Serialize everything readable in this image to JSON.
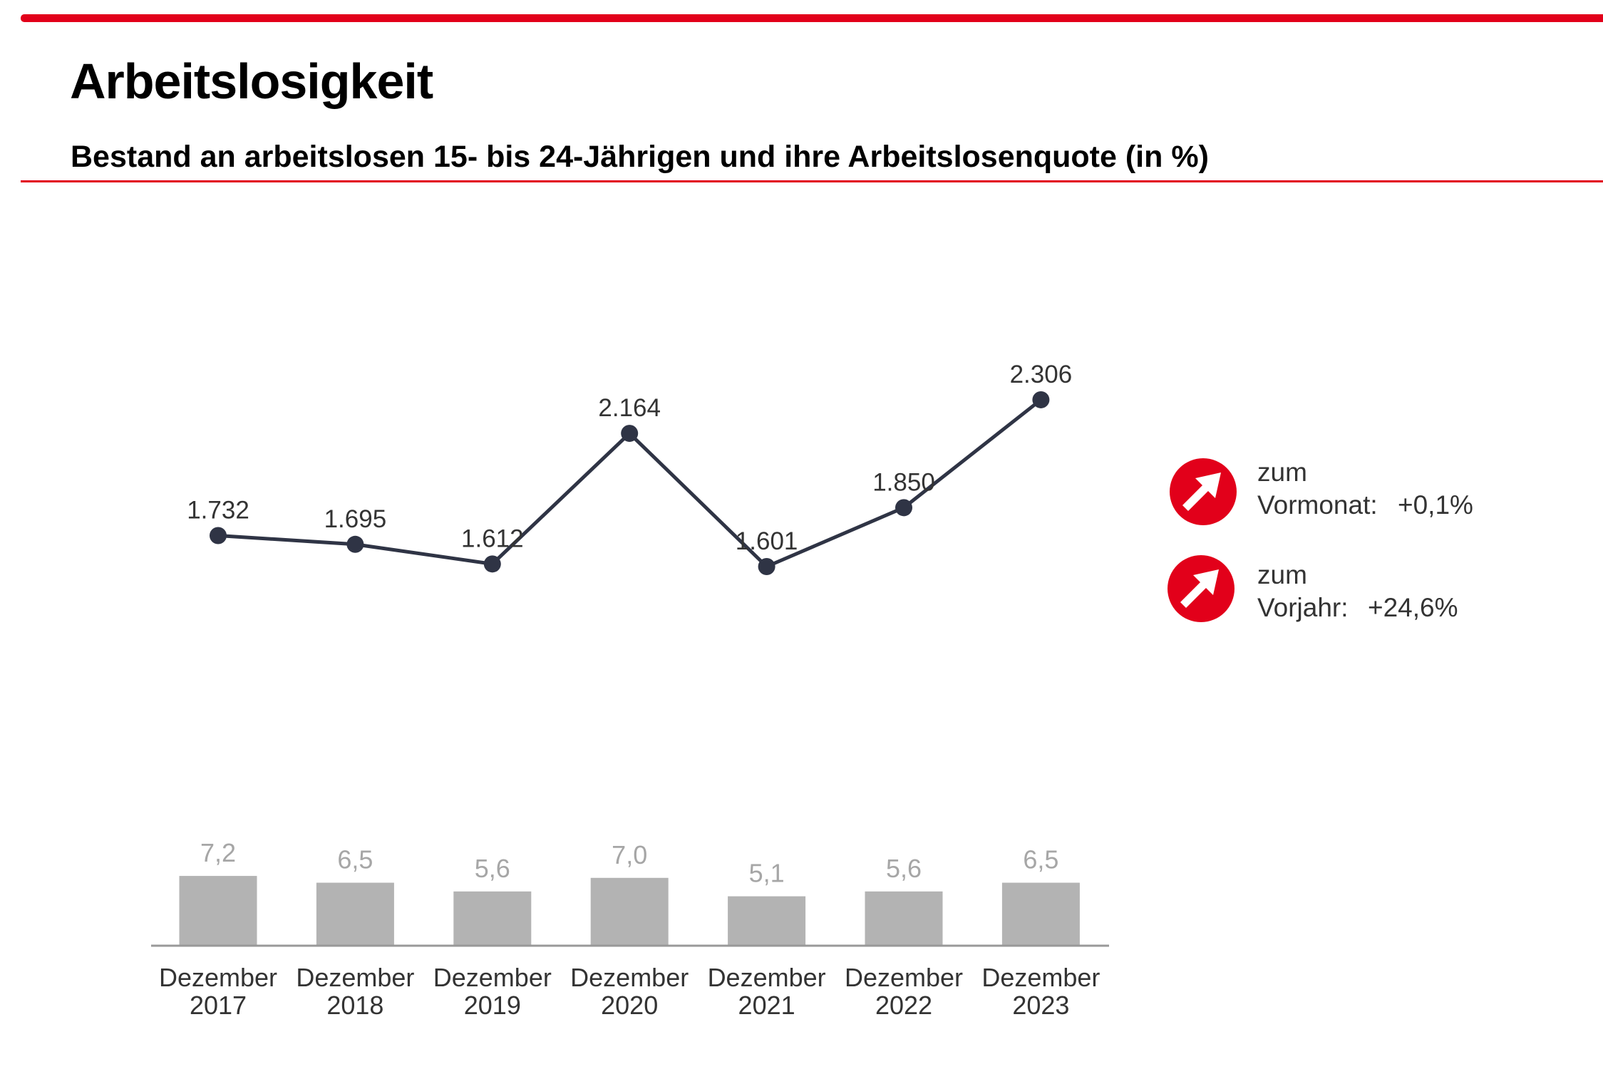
{
  "header": {
    "title": "Arbeitslosigkeit",
    "subtitle": "Bestand an arbeitslosen 15- bis 24-Jährigen und ihre Arbeitslosenquote (in %)"
  },
  "colors": {
    "accent": "#e2001a",
    "line": "#2f3445",
    "bar": "#b3b3b3",
    "bar_label": "#a6a6a6",
    "text": "#333333"
  },
  "chart_data": {
    "type": "line+bar",
    "categories": [
      [
        "Dezember",
        "2017"
      ],
      [
        "Dezember",
        "2018"
      ],
      [
        "Dezember",
        "2019"
      ],
      [
        "Dezember",
        "2020"
      ],
      [
        "Dezember",
        "2021"
      ],
      [
        "Dezember",
        "2022"
      ],
      [
        "Dezember",
        "2023"
      ]
    ],
    "series": [
      {
        "type": "line",
        "values": [
          1732,
          1695,
          1612,
          2164,
          1601,
          1850,
          2306
        ],
        "labels": [
          "1.732",
          "1.695",
          "1.612",
          "2.164",
          "1.601",
          "1.850",
          "2.306"
        ]
      },
      {
        "type": "bar",
        "values": [
          7.2,
          6.5,
          5.6,
          7.0,
          5.1,
          5.6,
          6.5
        ],
        "labels": [
          "7,2",
          "6,5",
          "5,6",
          "7,0",
          "5,1",
          "5,6",
          "6,5"
        ]
      }
    ],
    "grid": false
  },
  "indicators": [
    {
      "icon": "arrow-up-right-icon",
      "line1": "zum",
      "line2": "Vormonat:",
      "value": "+0,1%"
    },
    {
      "icon": "arrow-up-right-icon",
      "line1": "zum",
      "line2": "Vorjahr:",
      "value": "+24,6%"
    }
  ]
}
